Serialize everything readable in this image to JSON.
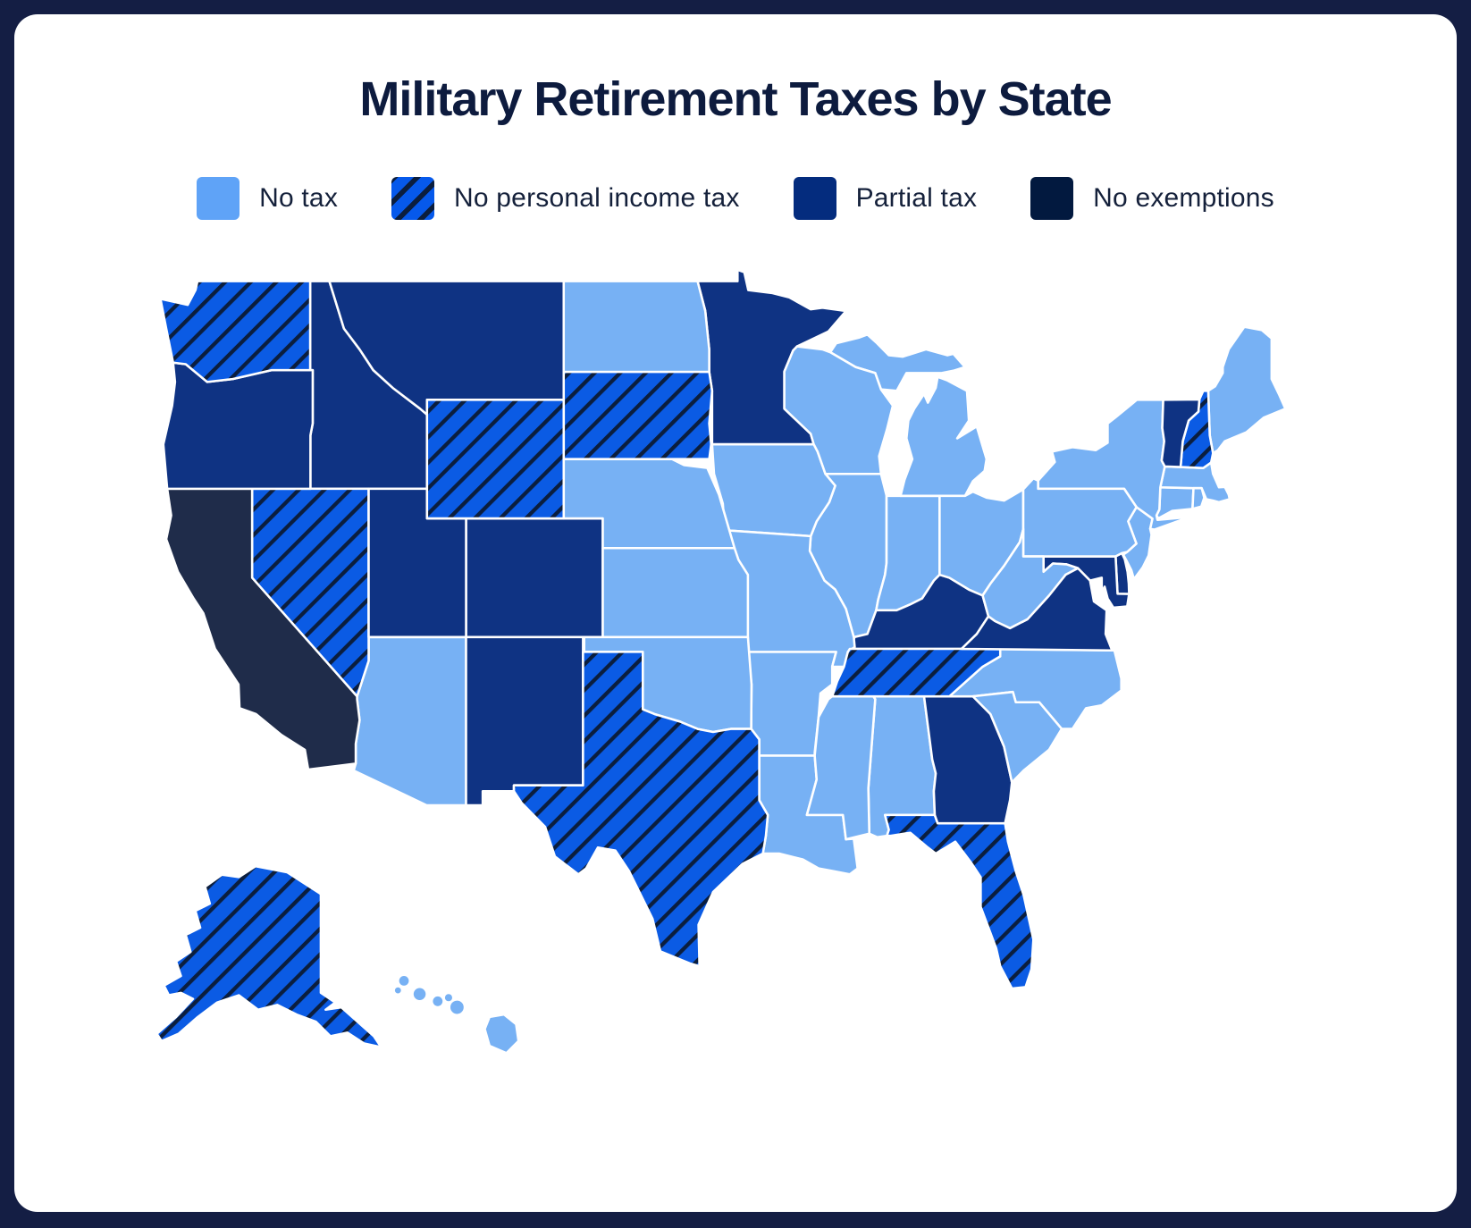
{
  "page": {
    "background_color": "#141E44",
    "card_color": "#FFFFFF"
  },
  "title": "Military Retirement Taxes by State",
  "title_color": "#0D1B3E",
  "legend": {
    "label_color": "#15213B",
    "items": [
      {
        "id": "no_tax",
        "label": "No tax",
        "pattern": "solid",
        "color": "#5FA3F7",
        "map_color": "#77B1F4"
      },
      {
        "id": "no_personal_income_tax",
        "label": "No personal income tax",
        "pattern": "hatched",
        "color": "#0659EB",
        "stripe_color": "#0B1E3E",
        "map_color": "#0B5BE4"
      },
      {
        "id": "partial_tax",
        "label": "Partial tax",
        "pattern": "solid",
        "color": "#042C7E",
        "map_color": "#0F3383"
      },
      {
        "id": "no_exemptions",
        "label": "No exemptions",
        "pattern": "solid",
        "color": "#02193F",
        "map_color": "#1F2C4A"
      }
    ]
  },
  "map": {
    "border_color": "#FFFFFF",
    "states": [
      {
        "abbr": "AL",
        "name": "Alabama",
        "category": "no_tax"
      },
      {
        "abbr": "AK",
        "name": "Alaska",
        "category": "no_personal_income_tax"
      },
      {
        "abbr": "AZ",
        "name": "Arizona",
        "category": "no_tax"
      },
      {
        "abbr": "AR",
        "name": "Arkansas",
        "category": "no_tax"
      },
      {
        "abbr": "CA",
        "name": "California",
        "category": "no_exemptions"
      },
      {
        "abbr": "CO",
        "name": "Colorado",
        "category": "partial_tax"
      },
      {
        "abbr": "CT",
        "name": "Connecticut",
        "category": "no_tax"
      },
      {
        "abbr": "DE",
        "name": "Delaware",
        "category": "partial_tax"
      },
      {
        "abbr": "FL",
        "name": "Florida",
        "category": "no_personal_income_tax"
      },
      {
        "abbr": "GA",
        "name": "Georgia",
        "category": "partial_tax"
      },
      {
        "abbr": "HI",
        "name": "Hawaii",
        "category": "no_tax"
      },
      {
        "abbr": "ID",
        "name": "Idaho",
        "category": "partial_tax"
      },
      {
        "abbr": "IL",
        "name": "Illinois",
        "category": "no_tax"
      },
      {
        "abbr": "IN",
        "name": "Indiana",
        "category": "no_tax"
      },
      {
        "abbr": "IA",
        "name": "Iowa",
        "category": "no_tax"
      },
      {
        "abbr": "KS",
        "name": "Kansas",
        "category": "no_tax"
      },
      {
        "abbr": "KY",
        "name": "Kentucky",
        "category": "partial_tax"
      },
      {
        "abbr": "LA",
        "name": "Louisiana",
        "category": "no_tax"
      },
      {
        "abbr": "ME",
        "name": "Maine",
        "category": "no_tax"
      },
      {
        "abbr": "MD",
        "name": "Maryland",
        "category": "partial_tax"
      },
      {
        "abbr": "MA",
        "name": "Massachusetts",
        "category": "no_tax"
      },
      {
        "abbr": "MI",
        "name": "Michigan",
        "category": "no_tax"
      },
      {
        "abbr": "MN",
        "name": "Minnesota",
        "category": "partial_tax"
      },
      {
        "abbr": "MS",
        "name": "Mississippi",
        "category": "no_tax"
      },
      {
        "abbr": "MO",
        "name": "Missouri",
        "category": "no_tax"
      },
      {
        "abbr": "MT",
        "name": "Montana",
        "category": "partial_tax"
      },
      {
        "abbr": "NE",
        "name": "Nebraska",
        "category": "no_tax"
      },
      {
        "abbr": "NV",
        "name": "Nevada",
        "category": "no_personal_income_tax"
      },
      {
        "abbr": "NH",
        "name": "New Hampshire",
        "category": "no_personal_income_tax"
      },
      {
        "abbr": "NJ",
        "name": "New Jersey",
        "category": "no_tax"
      },
      {
        "abbr": "NM",
        "name": "New Mexico",
        "category": "partial_tax"
      },
      {
        "abbr": "NY",
        "name": "New York",
        "category": "no_tax"
      },
      {
        "abbr": "NC",
        "name": "North Carolina",
        "category": "no_tax"
      },
      {
        "abbr": "ND",
        "name": "North Dakota",
        "category": "no_tax"
      },
      {
        "abbr": "OH",
        "name": "Ohio",
        "category": "no_tax"
      },
      {
        "abbr": "OK",
        "name": "Oklahoma",
        "category": "no_tax"
      },
      {
        "abbr": "OR",
        "name": "Oregon",
        "category": "partial_tax"
      },
      {
        "abbr": "PA",
        "name": "Pennsylvania",
        "category": "no_tax"
      },
      {
        "abbr": "RI",
        "name": "Rhode Island",
        "category": "no_tax"
      },
      {
        "abbr": "SC",
        "name": "South Carolina",
        "category": "no_tax"
      },
      {
        "abbr": "SD",
        "name": "South Dakota",
        "category": "no_personal_income_tax"
      },
      {
        "abbr": "TN",
        "name": "Tennessee",
        "category": "no_personal_income_tax"
      },
      {
        "abbr": "TX",
        "name": "Texas",
        "category": "no_personal_income_tax"
      },
      {
        "abbr": "UT",
        "name": "Utah",
        "category": "partial_tax"
      },
      {
        "abbr": "VT",
        "name": "Vermont",
        "category": "partial_tax"
      },
      {
        "abbr": "VA",
        "name": "Virginia",
        "category": "partial_tax"
      },
      {
        "abbr": "WA",
        "name": "Washington",
        "category": "no_personal_income_tax"
      },
      {
        "abbr": "WV",
        "name": "West Virginia",
        "category": "no_tax"
      },
      {
        "abbr": "WI",
        "name": "Wisconsin",
        "category": "no_tax"
      },
      {
        "abbr": "WY",
        "name": "Wyoming",
        "category": "no_personal_income_tax"
      }
    ]
  }
}
